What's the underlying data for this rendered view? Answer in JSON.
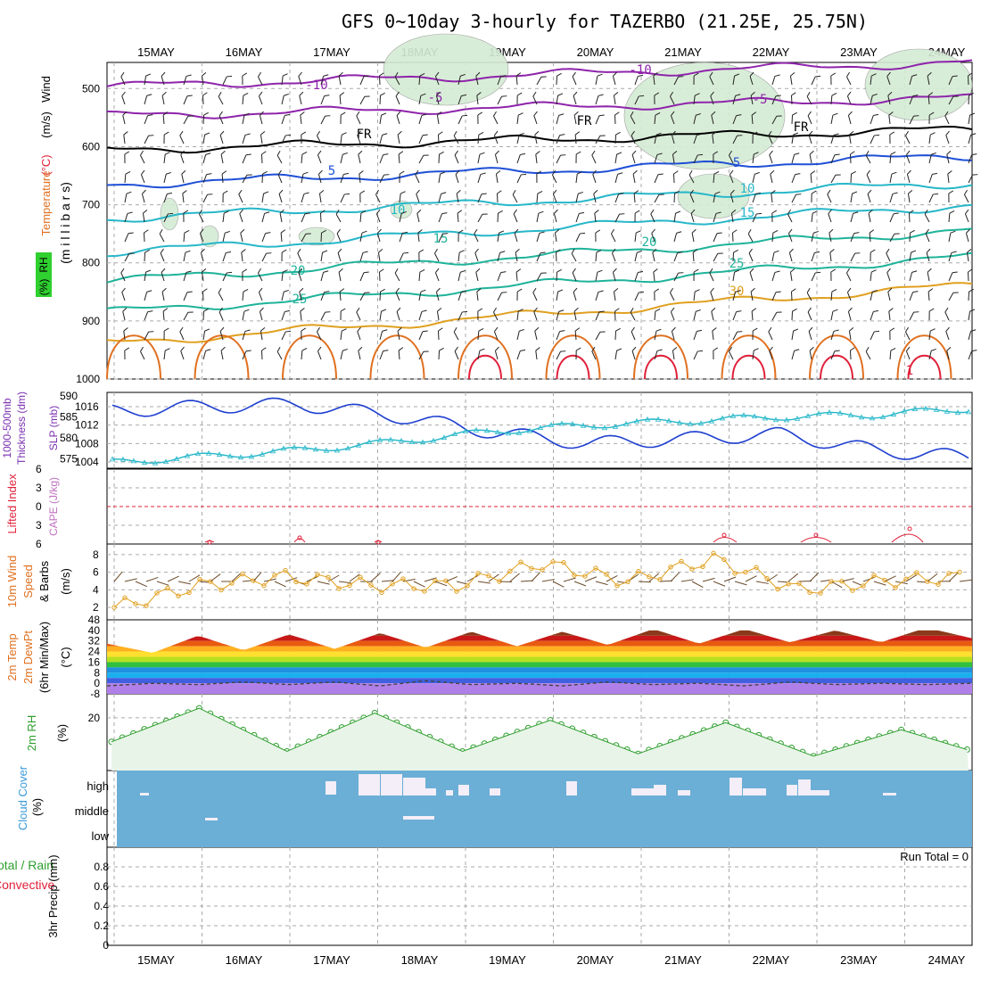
{
  "title": "GFS 0~10day 3-hourly for TAZERBO (21.25E, 25.75N)",
  "days": [
    "15MAY",
    "16MAY",
    "17MAY",
    "18MAY",
    "19MAY",
    "20MAY",
    "21MAY",
    "22MAY",
    "23MAY",
    "24MAY"
  ],
  "colors": {
    "frame": "#000000",
    "grid": "#aaaaaa",
    "purple": "#8e24aa",
    "blue": "#1e4fd6",
    "cyan": "#26b7c9",
    "teal": "#1fb39a",
    "orange": "#e0a020",
    "darkorange": "#e07020",
    "red": "#e0203a",
    "green": "#2e9e2e",
    "rhfill": "#d4ecd4",
    "cloudbg": "#6baed6",
    "slp": "#1e3fd0",
    "thick": "#26b7c9"
  },
  "panels": {
    "upper": {
      "name_a": "Wind",
      "unit_a": "(m/s)",
      "name_b": "Temperature",
      "unit_b": "(°C)",
      "name_c": "RH",
      "unit_c": "(%)",
      "axis": "(m i l l i b a r s)",
      "levels": [
        500,
        600,
        700,
        800,
        900,
        1000
      ],
      "isotherm_labels": [
        "-10",
        "-10",
        "-5",
        "-5",
        "FR",
        "FR",
        "FR",
        "5",
        "5",
        "10",
        "10",
        "15",
        "15",
        "20",
        "20",
        "25",
        "25",
        "30",
        "1"
      ]
    },
    "slp": {
      "label_a": "1000-500mb",
      "label_b": "Thickness (dm)",
      "label_c": "SLP (mb)",
      "thick_ticks": [
        590,
        585,
        580,
        575
      ],
      "slp_ticks": [
        1016,
        1012,
        1008,
        1004
      ]
    },
    "cape": {
      "label_a": "Lifted Index",
      "label_b": "CAPE (J/kg)",
      "ticks": [
        6,
        3,
        0,
        -3,
        -6
      ]
    },
    "wind10": {
      "label_a": "10m Wind",
      "label_b": "Speed",
      "label_c": "& Barbs",
      "unit": "(m/s)",
      "ticks": [
        8,
        6,
        4,
        2
      ]
    },
    "temp2m": {
      "label_a": "2m Temp",
      "label_b": "2m DewPt",
      "label_c": "(6hr Min/Max)",
      "unit": "(°C)",
      "ticks": [
        48,
        40,
        32,
        24,
        16,
        8,
        0,
        -8
      ]
    },
    "rh2m": {
      "label": "2m RH",
      "unit": "(%)",
      "ticks": [
        20
      ]
    },
    "cloud": {
      "label": "Cloud Cover",
      "unit": "(%)",
      "levels": [
        "high",
        "middle",
        "low"
      ]
    },
    "precip": {
      "label_a": "Total / Rain",
      "label_b": "Convective",
      "label_c": "3hr Precip (mm)",
      "ticks": [
        0.8,
        0.6,
        0.4,
        0.2,
        0
      ],
      "run_total": "Run Total = 0"
    }
  },
  "chart_data": [
    {
      "type": "line",
      "title": "SLP (mb)",
      "ylim": [
        1003,
        1018
      ],
      "x": [
        "15MAY",
        "16MAY",
        "17MAY",
        "18MAY",
        "19MAY",
        "20MAY",
        "21MAY",
        "22MAY",
        "23MAY",
        "24MAY"
      ],
      "series": [
        {
          "name": "SLP (mb)",
          "values": [
            1015,
            1016,
            1016.5,
            1014,
            1010.5,
            1008,
            1009,
            1010,
            1006.5,
            1005
          ]
        }
      ]
    },
    {
      "type": "line",
      "title": "1000-500mb Thickness (dm)",
      "ylim": [
        573,
        590
      ],
      "x": [
        "15MAY",
        "16MAY",
        "17MAY",
        "18MAY",
        "19MAY",
        "20MAY",
        "21MAY",
        "22MAY",
        "23MAY",
        "24MAY"
      ],
      "series": [
        {
          "name": "1000-500mb Thickness (dm)",
          "values": [
            574,
            575.5,
            577,
            579,
            581.5,
            583,
            584,
            585,
            585.5,
            587
          ]
        }
      ]
    },
    {
      "type": "line",
      "title": "10m Wind Speed (m/s)",
      "ylim": [
        1,
        9
      ],
      "x": [
        0,
        0.5,
        1,
        1.5,
        2,
        2.5,
        3,
        3.5,
        4,
        4.5,
        5,
        5.5,
        6,
        6.5,
        7,
        7.5,
        8,
        8.5,
        9,
        9.5
      ],
      "series": [
        {
          "name": "Speed",
          "values": [
            2,
            4.5,
            5.5,
            4.5,
            4.5,
            7,
            5,
            7.5,
            4,
            5,
            5.5,
            7.5,
            5,
            6.5,
            4.5,
            7.5,
            4,
            6,
            3.5,
            7.5
          ]
        }
      ]
    },
    {
      "type": "area",
      "title": "2m Temp (°C)",
      "ylim": [
        -8,
        48
      ],
      "x": [
        0,
        0.5,
        1,
        1.5,
        2,
        2.5,
        3,
        3.5,
        4,
        4.5,
        5,
        5.5,
        6,
        6.5,
        7,
        7.5,
        8,
        8.5,
        9,
        9.5
      ],
      "series": [
        {
          "name": "2m Temp",
          "values": [
            30,
            23,
            36,
            25,
            37,
            26,
            38,
            27,
            39,
            28,
            39,
            29,
            41,
            30,
            41,
            31,
            40,
            31,
            42,
            34
          ]
        },
        {
          "name": "2m DewPt",
          "values": [
            -2,
            0,
            -1,
            1,
            -1,
            1,
            -2,
            2,
            -1,
            0,
            -2,
            1,
            -1,
            0,
            -2,
            1,
            -1,
            0,
            -1,
            0
          ]
        }
      ]
    },
    {
      "type": "line",
      "title": "2m RH (%)",
      "ylim": [
        0,
        30
      ],
      "x": [
        0,
        0.5,
        1,
        1.5,
        2,
        2.5,
        3,
        3.5,
        4,
        4.5,
        5,
        5.5,
        6,
        6.5,
        7,
        7.5,
        8,
        8.5,
        9,
        9.5
      ],
      "series": [
        {
          "name": "2m RH",
          "values": [
            10,
            24,
            6,
            22,
            6,
            19,
            5,
            18,
            4,
            15,
            4,
            13,
            3,
            12,
            4,
            11,
            3,
            11,
            3,
            9
          ]
        }
      ]
    },
    {
      "type": "bar",
      "title": "3hr Precip (mm)",
      "ylim": [
        0,
        1
      ],
      "x": [
        "15MAY",
        "16MAY",
        "17MAY",
        "18MAY",
        "19MAY",
        "20MAY",
        "21MAY",
        "22MAY",
        "23MAY",
        "24MAY"
      ],
      "series": [
        {
          "name": "3hr Precip (mm)",
          "values": [
            0,
            0,
            0,
            0,
            0,
            0,
            0,
            0,
            0,
            0
          ]
        }
      ]
    }
  ]
}
